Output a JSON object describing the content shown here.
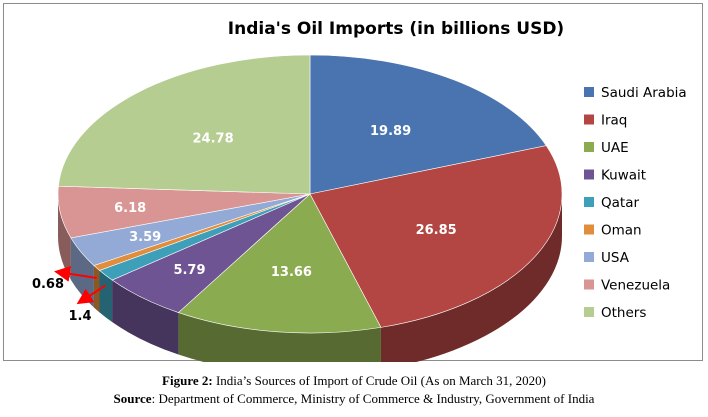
{
  "chart_data": {
    "type": "pie",
    "title": "India's Oil Imports (in billions USD)",
    "categories": [
      "Saudi Arabia",
      "Iraq",
      "UAE",
      "Kuwait",
      "Qatar",
      "Oman",
      "USA",
      "Venezuela",
      "Others"
    ],
    "values": [
      19.89,
      26.85,
      13.66,
      5.79,
      1.4,
      0.68,
      3.59,
      6.18,
      24.78
    ],
    "value_labels": [
      "19.89",
      "26.85",
      "13.66",
      "5.79",
      "1.4",
      "0.68",
      "3.59",
      "6.18",
      "24.78"
    ],
    "colors": [
      "#4a74b0",
      "#b34643",
      "#8aab4f",
      "#6f5494",
      "#3ea0b8",
      "#e08d3c",
      "#93aad6",
      "#d99593",
      "#b6cd91"
    ],
    "legend_position": "right",
    "style": "3d-pie"
  },
  "caption": {
    "figure_label": "Figure 2:",
    "figure_text": " India’s Sources of Import of Crude Oil (As on March 31, 2020)",
    "source_label": "Source",
    "source_text": ": Department of Commerce, Ministry of Commerce & Industry, Government of India"
  }
}
